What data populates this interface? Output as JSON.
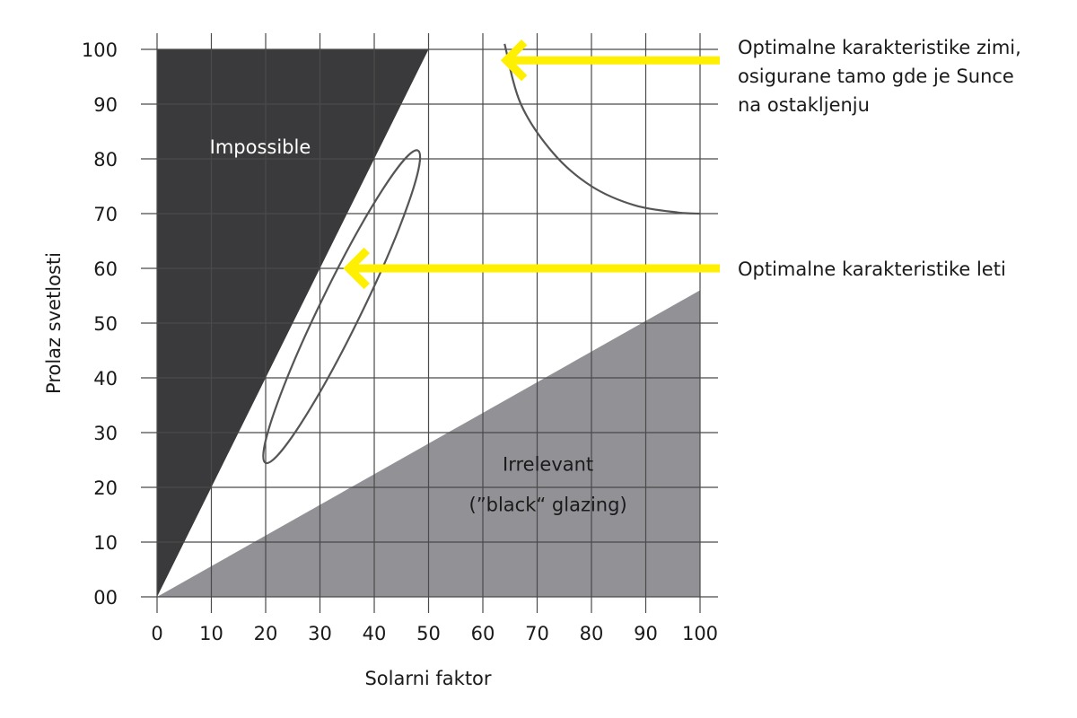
{
  "chart_data": {
    "type": "diagram",
    "xlabel": "Solarni faktor",
    "ylabel": "Prolaz svetlosti",
    "xlim": [
      0,
      100
    ],
    "ylim": [
      0,
      100
    ],
    "x_ticks": [
      "0",
      "10",
      "20",
      "30",
      "40",
      "50",
      "60",
      "70",
      "80",
      "90",
      "100"
    ],
    "y_ticks": [
      "00",
      "10",
      "20",
      "30",
      "40",
      "50",
      "60",
      "70",
      "80",
      "90",
      "100"
    ],
    "grid": true,
    "regions": [
      {
        "name": "Impossible",
        "label": "Impossible",
        "color": "#3a3a3c",
        "label_color": "#ffffff",
        "points": [
          [
            0,
            0
          ],
          [
            0,
            100
          ],
          [
            50,
            100
          ]
        ],
        "label_at": [
          19,
          81
        ]
      },
      {
        "name": "Irrelevant",
        "label": "Irrelevant",
        "label2": "(”black“ glazing)",
        "color": "#929296",
        "label_color": "#1a1a1a",
        "points": [
          [
            0,
            0
          ],
          [
            100,
            56
          ],
          [
            100,
            0
          ]
        ],
        "label_at": [
          72,
          23
        ]
      }
    ],
    "summer_ellipse": {
      "center": [
        34,
        53
      ],
      "semi_axis_major": 32,
      "semi_axis_minor": 3.8,
      "angle_deg": 64,
      "stroke": "#555555"
    },
    "winter_curve": {
      "points": [
        [
          64,
          101
        ],
        [
          67,
          90
        ],
        [
          73,
          81
        ],
        [
          80,
          75
        ],
        [
          88,
          71.5
        ],
        [
          96,
          70.2
        ],
        [
          100,
          70
        ]
      ],
      "stroke": "#555555"
    },
    "arrows": [
      {
        "name": "winter",
        "tip": [
          64,
          98
        ],
        "color": "#ffef00",
        "text_lines": [
          "Optimalne karakteristike zimi,",
          "osigurane tamo gde je Sunce",
          "na ostakljenju"
        ]
      },
      {
        "name": "summer",
        "tip": [
          35,
          60
        ],
        "color": "#ffef00",
        "text_lines": [
          "Optimalne karakteristike leti"
        ]
      }
    ]
  }
}
